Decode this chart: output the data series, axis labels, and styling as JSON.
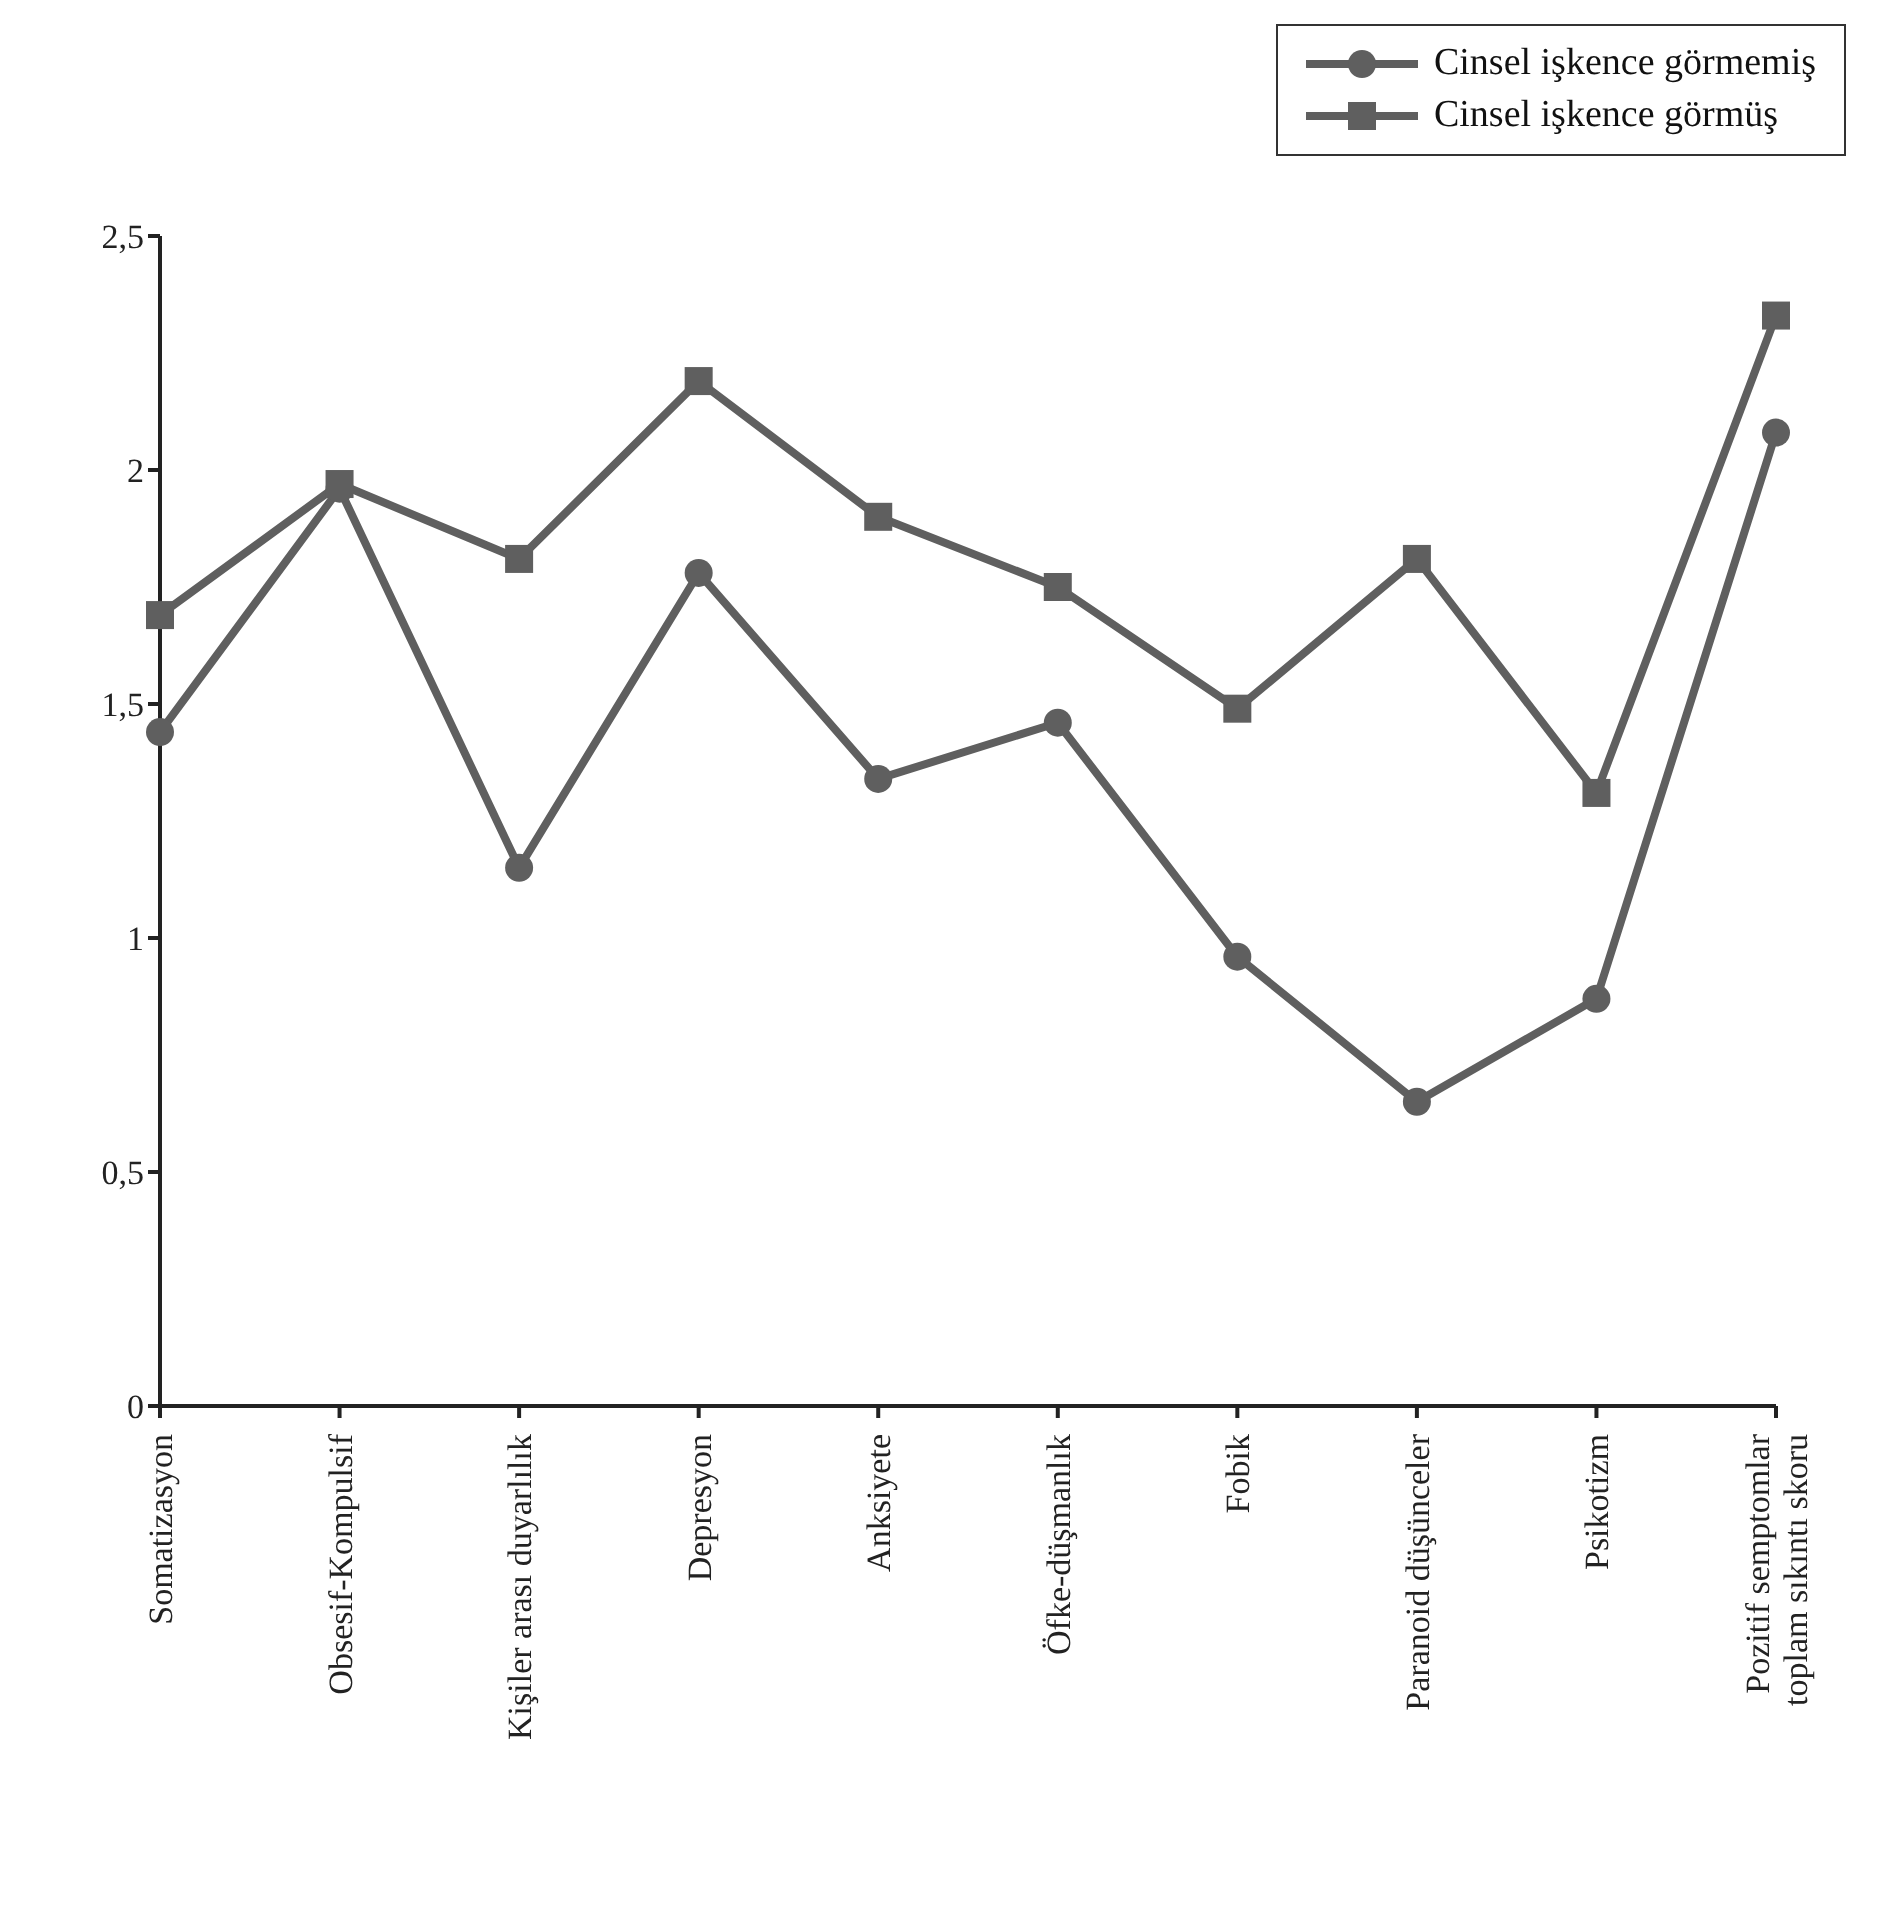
{
  "chart_data": {
    "type": "line",
    "categories": [
      "Somatizasyon",
      "Obsesif-Kompulsif",
      "Kişiler arası duyarlılık",
      "Depresyon",
      "Anksiyete",
      "Öfke-düşmanlık",
      "Fobik",
      "Paranoid düşünceler",
      "Psikotizm",
      "Pozitif semptomlar toplam sıkıntı skoru"
    ],
    "series": [
      {
        "name": "Cinsel işkence görmemiş",
        "color": "#5f5f5f",
        "marker": "circle",
        "values": [
          1.44,
          1.96,
          1.15,
          1.78,
          1.34,
          1.46,
          0.96,
          0.65,
          0.87,
          2.08
        ]
      },
      {
        "name": "Cinsel işkence görmüş",
        "color": "#5f5f5f",
        "marker": "square",
        "values": [
          1.69,
          1.97,
          1.81,
          2.19,
          1.9,
          1.75,
          1.49,
          1.81,
          1.31,
          2.33
        ]
      }
    ],
    "ylim": [
      0,
      2.5
    ],
    "yticks": [
      0,
      {
        "value": 0.5,
        "label": "0,5"
      },
      1,
      {
        "value": 1.5,
        "label": "1,5"
      },
      2,
      {
        "value": 2.5,
        "label": "2,5"
      }
    ],
    "grid": false,
    "legend": "top right",
    "line_style": "solid"
  }
}
